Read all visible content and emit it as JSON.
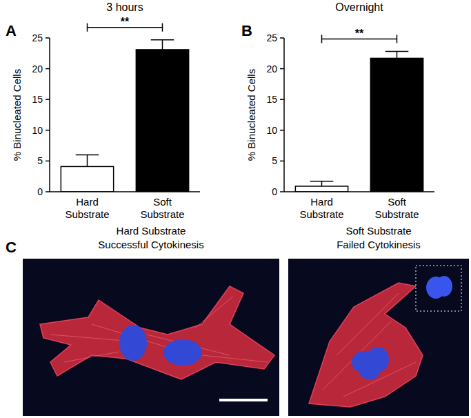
{
  "chart_data": [
    {
      "type": "bar",
      "panel_label": "A",
      "title": "3 hours",
      "y_label": "% Binucleated Cells",
      "categories": [
        "Hard Substrate",
        "Soft Substrate"
      ],
      "values": [
        4.1,
        23.1
      ],
      "errors": [
        1.9,
        1.6
      ],
      "colors": [
        "#ffffff",
        "#000000"
      ],
      "ylim": [
        0,
        25
      ],
      "yticks": [
        0,
        5,
        10,
        15,
        20,
        25
      ],
      "grid": false,
      "annotations": [
        {
          "text": "**",
          "categories": [
            0,
            1
          ]
        }
      ]
    },
    {
      "type": "bar",
      "panel_label": "B",
      "title": "Overnight",
      "y_label": "% Binucleated Cells",
      "categories": [
        "Hard Substrate",
        "Soft Substrate"
      ],
      "values": [
        0.9,
        21.7
      ],
      "errors": [
        0.8,
        1.1
      ],
      "colors": [
        "#ffffff",
        "#000000"
      ],
      "ylim": [
        0,
        25
      ],
      "yticks": [
        0,
        5,
        10,
        15,
        20,
        25
      ],
      "grid": false,
      "annotations": [
        {
          "text": "**",
          "categories": [
            0,
            1
          ]
        }
      ]
    }
  ],
  "panel_c": {
    "label": "C",
    "images": [
      {
        "title": "Hard Substrate",
        "subtitle": "Successful Cytokinesis"
      },
      {
        "title": "Soft Substrate",
        "subtitle": "Failed Cytokinesis"
      }
    ]
  }
}
